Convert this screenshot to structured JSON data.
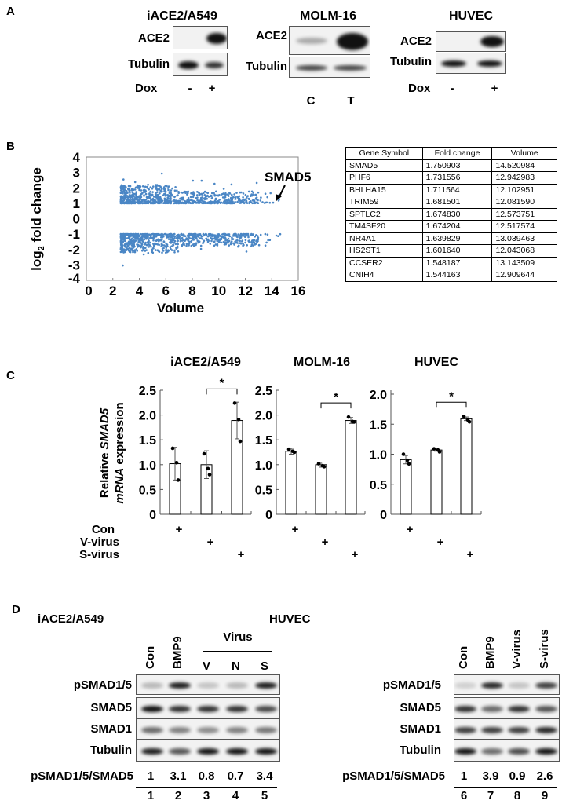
{
  "panels": {
    "a": "A",
    "b": "B",
    "c": "C",
    "d": "D"
  },
  "panel_a": {
    "blots": [
      {
        "title": "iACE2/A549",
        "rows": [
          "ACE2",
          "Tubulin"
        ],
        "condition_label": "Dox",
        "lanes": [
          "-",
          "+"
        ]
      },
      {
        "title": "MOLM-16",
        "rows": [
          "ACE2",
          "Tubulin"
        ],
        "condition_label": "",
        "lanes": [
          "C",
          "T"
        ]
      },
      {
        "title": "HUVEC",
        "rows": [
          "ACE2",
          "Tubulin"
        ],
        "condition_label": "Dox",
        "lanes": [
          "-",
          "+"
        ]
      }
    ]
  },
  "panel_b_table": {
    "headers": [
      "Gene Symbol",
      "Fold change",
      "Volume"
    ],
    "rows": [
      [
        "SMAD5",
        "1.750903",
        "14.520984"
      ],
      [
        "PHF6",
        "1.731556",
        "12.942983"
      ],
      [
        "BHLHA15",
        "1.711564",
        "12.102951"
      ],
      [
        "TRIM59",
        "1.681501",
        "12.081590"
      ],
      [
        "SPTLC2",
        "1.674830",
        "12.573751"
      ],
      [
        "TM4SF20",
        "1.674204",
        "12.517574"
      ],
      [
        "NR4A1",
        "1.639829",
        "13.039463"
      ],
      [
        "HS2ST1",
        "1.601640",
        "12.043068"
      ],
      [
        "CCSER2",
        "1.548187",
        "13.143509"
      ],
      [
        "CNIH4",
        "1.544163",
        "12.909644"
      ]
    ]
  },
  "panel_c": {
    "ylabel_line1": "Relative SMAD5",
    "ylabel_line2": "mRNA expression",
    "conditions": [
      {
        "label": "Con",
        "lanes": [
          1,
          0,
          0
        ]
      },
      {
        "label": "V-virus",
        "lanes": [
          0,
          1,
          0
        ]
      },
      {
        "label": "S-virus",
        "lanes": [
          0,
          0,
          1
        ]
      }
    ],
    "plus": "+",
    "sig": "*"
  },
  "panel_d": {
    "left": {
      "title": "iACE2/A549",
      "lanes": [
        "Con",
        "BMP9",
        "V",
        "N",
        "S"
      ],
      "group_label": "Virus",
      "rows": [
        "pSMAD1/5",
        "SMAD5",
        "SMAD1",
        "Tubulin"
      ],
      "ratio_label": "pSMAD1/5/SMAD5",
      "ratios": [
        "1",
        "3.1",
        "0.8",
        "0.7",
        "3.4"
      ],
      "lane_numbers": [
        "1",
        "2",
        "3",
        "4",
        "5"
      ]
    },
    "right": {
      "title": "HUVEC",
      "lanes": [
        "Con",
        "BMP9",
        "V-virus",
        "S-virus"
      ],
      "rows": [
        "pSMAD1/5",
        "SMAD5",
        "SMAD1",
        "Tubulin"
      ],
      "ratio_label": "pSMAD1/5/SMAD5",
      "ratios": [
        "1",
        "3.9",
        "0.9",
        "2.6"
      ],
      "lane_numbers": [
        "6",
        "7",
        "8",
        "9"
      ]
    }
  },
  "chart_data": [
    {
      "type": "scatter",
      "xlabel": "Volume",
      "ylabel": "log2 fold change",
      "xlim": [
        0,
        16
      ],
      "ylim": [
        -4,
        4
      ],
      "xticks": [
        "0",
        "2",
        "4",
        "6",
        "8",
        "10",
        "12",
        "14",
        "16"
      ],
      "yticks": [
        "-4",
        "-3",
        "-2",
        "-1",
        "0",
        "1",
        "2",
        "3",
        "4"
      ],
      "color": "#4a86c5",
      "distribution": "dense points for |log2 fold change| between 1 and ~3, volume ~2.5 to ~14.8",
      "annotation": "SMAD5",
      "highlight": {
        "label": "SMAD5",
        "x": 14.52,
        "y": 1.5
      },
      "grid": false
    },
    {
      "type": "bar",
      "title": "iACE2/A549",
      "categories": [
        "Con",
        "V-virus",
        "S-virus"
      ],
      "values": [
        1.02,
        1.0,
        1.89
      ],
      "errors": [
        0.33,
        0.28,
        0.37
      ],
      "points": [
        [
          1.33,
          1.04,
          0.69
        ],
        [
          1.22,
          0.92,
          0.8
        ],
        [
          2.24,
          1.91,
          1.47
        ]
      ],
      "ylim": [
        0,
        2.5
      ],
      "yticks": [
        "0",
        "0.5",
        "1.0",
        "1.5",
        "2.0",
        "2.5"
      ],
      "significance": {
        "between": [
          1,
          2
        ],
        "label": "*"
      }
    },
    {
      "type": "bar",
      "title": "MOLM-16",
      "categories": [
        "Con",
        "V-virus",
        "S-virus"
      ],
      "values": [
        1.27,
        1.0,
        1.89
      ],
      "errors": [
        0.06,
        0.05,
        0.06
      ],
      "points": [
        [
          1.31,
          1.27,
          1.25
        ],
        [
          1.02,
          0.98,
          0.96
        ],
        [
          1.96,
          1.87,
          1.86
        ]
      ],
      "ylim": [
        0,
        2.5
      ],
      "yticks": [
        "0",
        "0.5",
        "1.0",
        "1.5",
        "2.0",
        "2.5"
      ],
      "significance": {
        "between": [
          1,
          2
        ],
        "label": "*"
      }
    },
    {
      "type": "bar",
      "title": "HUVEC",
      "categories": [
        "Con",
        "V-virus",
        "S-virus"
      ],
      "values": [
        0.91,
        1.07,
        1.59
      ],
      "errors": [
        0.07,
        0.02,
        0.03
      ],
      "points": [
        [
          1.0,
          0.9,
          0.84
        ],
        [
          1.09,
          1.07,
          1.04
        ],
        [
          1.63,
          1.57,
          1.54
        ]
      ],
      "ylim": [
        0,
        2.0
      ],
      "yticks": [
        "0",
        "0.5",
        "1.0",
        "1.5",
        "2.0"
      ],
      "significance": {
        "between": [
          1,
          2
        ],
        "label": "*"
      }
    }
  ]
}
